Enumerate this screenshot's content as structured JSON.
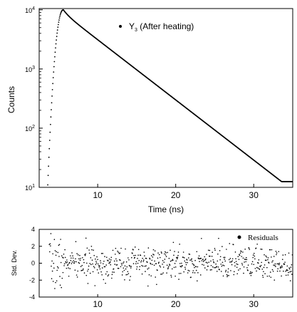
{
  "chart_data": [
    {
      "id": "decay",
      "type": "scatter",
      "xlabel": "Time (ns)",
      "ylabel": "Counts",
      "xlim": [
        2.5,
        35
      ],
      "ylim": [
        10,
        10500
      ],
      "yscale": "log",
      "xticks": [
        10,
        20,
        30
      ],
      "xtick_labels": [
        "10",
        "20",
        "30"
      ],
      "yticks": [
        10,
        100,
        1000,
        10000
      ],
      "ytick_labels": [
        {
          "base": "10",
          "exp": "1"
        },
        {
          "base": "10",
          "exp": "2"
        },
        {
          "base": "10",
          "exp": "3"
        },
        {
          "base": "10",
          "exp": "4"
        }
      ],
      "legend": {
        "label_main": "Y",
        "label_sub": "3",
        "label_rest": " (After heating)",
        "position": "top-center"
      },
      "series": [
        {
          "name": "Y3 (After heating)",
          "model": {
            "x_start": 3.6,
            "x_peak": 5.6,
            "x_end": 35,
            "y_start": 11,
            "y_peak": 10000,
            "y_end": 12.5,
            "step": 0.05
          }
        }
      ],
      "grid": false
    },
    {
      "id": "residuals",
      "type": "scatter",
      "xlabel": "",
      "ylabel": "Std. Dev.",
      "xlim": [
        2.5,
        35
      ],
      "ylim": [
        -4,
        4
      ],
      "xticks": [
        10,
        20,
        30
      ],
      "xtick_labels": [
        "10",
        "20",
        "30"
      ],
      "yticks": [
        -4,
        -2,
        0,
        2,
        4
      ],
      "ytick_labels": [
        "-4",
        "-2",
        "0",
        "2",
        "4"
      ],
      "legend": {
        "label": "Residuals",
        "position": "top-right"
      },
      "series": [
        {
          "name": "Residuals",
          "model": {
            "x_start": 3.8,
            "x_end": 35,
            "step": 0.05,
            "std": 0.95,
            "clip": 3.6,
            "seed": 7
          }
        }
      ],
      "grid": false
    }
  ]
}
